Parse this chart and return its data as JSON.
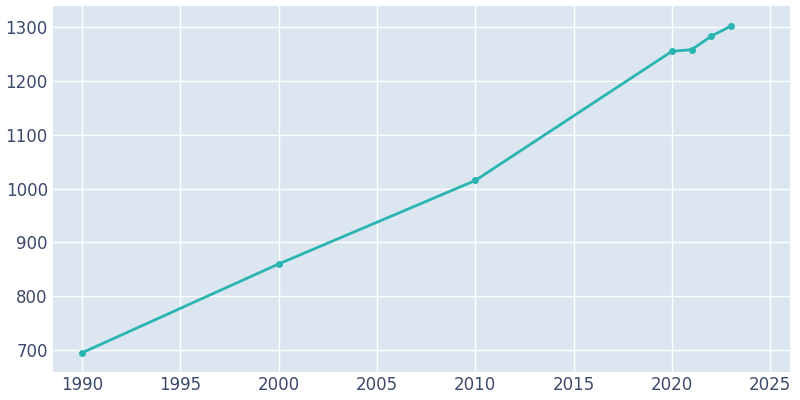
{
  "years": [
    1990,
    2000,
    2010,
    2020,
    2021,
    2022,
    2023
  ],
  "population": [
    695,
    860,
    1015,
    1255,
    1258,
    1283,
    1302
  ],
  "line_color": "#2ab5b0",
  "marker_style": "o",
  "marker_size": 4,
  "line_width": 2.0,
  "plot_bg_color": "#dce6f0",
  "fig_bg_color": "#ffffff",
  "grid_color": "#ffffff",
  "tick_label_color": "#3a4a6b",
  "xlim": [
    1988.5,
    2026
  ],
  "ylim": [
    660,
    1340
  ],
  "xticks": [
    1990,
    1995,
    2000,
    2005,
    2010,
    2015,
    2020,
    2025
  ],
  "yticks": [
    700,
    800,
    900,
    1000,
    1100,
    1200,
    1300
  ],
  "tick_fontsize": 12
}
